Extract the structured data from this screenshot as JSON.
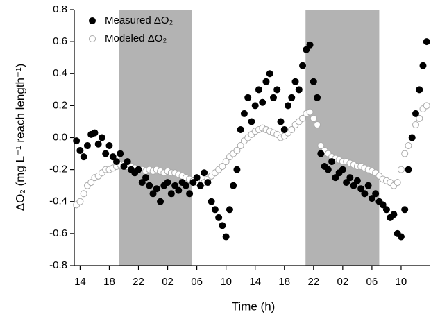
{
  "chart_data": {
    "type": "scatter",
    "xlabel": "Time (h)",
    "ylabel": "ΔO₂ (mg L⁻¹ reach length⁻¹)",
    "xlim": [
      13.2,
      62
    ],
    "ylim": [
      -0.8,
      0.8
    ],
    "xticks": [
      14,
      18,
      22,
      {
        "value": 26,
        "label": "02"
      },
      {
        "value": 30,
        "label": "06"
      },
      {
        "value": 34,
        "label": "10"
      },
      {
        "value": 38,
        "label": "14"
      },
      {
        "value": 42,
        "label": "18"
      },
      {
        "value": 46,
        "label": "22"
      },
      {
        "value": 50,
        "label": "02"
      },
      {
        "value": 54,
        "label": "06"
      },
      {
        "value": 58,
        "label": "10"
      }
    ],
    "yticks": [
      0.8,
      0.6,
      0.4,
      0.2,
      {
        "value": 0,
        "label": "0.0"
      },
      -0.2,
      -0.4,
      -0.6,
      -0.8
    ],
    "grid": false,
    "legend": "upper left",
    "shaded_regions": [
      [
        19.3,
        29.3
      ],
      [
        44.9,
        55
      ]
    ],
    "shade_color": "#b3b3b3",
    "x": [
      13.5,
      14,
      14.5,
      15,
      15.5,
      16,
      16.5,
      17,
      17.5,
      18,
      18.5,
      19,
      19.5,
      20,
      20.5,
      21,
      21.5,
      22,
      22.5,
      23,
      23.5,
      24,
      24.5,
      25,
      25.5,
      26,
      26.5,
      27,
      27.5,
      28,
      28.5,
      29,
      29.5,
      30,
      30.5,
      31,
      31.5,
      32,
      32.5,
      33,
      33.5,
      34,
      34.5,
      35,
      35.5,
      36,
      36.5,
      37,
      37.5,
      38,
      38.5,
      39,
      39.5,
      40,
      40.5,
      41,
      41.5,
      42,
      42.5,
      43,
      43.5,
      44,
      44.5,
      45,
      45.5,
      46,
      46.5,
      47,
      47.5,
      48,
      48.5,
      49,
      49.5,
      50,
      50.5,
      51,
      51.5,
      52,
      52.5,
      53,
      53.5,
      54,
      54.5,
      55,
      55.5,
      56,
      56.5,
      57,
      57.5,
      58,
      58.5,
      59,
      59.5,
      60,
      60.5,
      61,
      61.5
    ],
    "series": [
      {
        "name": "Measured ΔO₂",
        "color": "#000000",
        "edgecolor": "#000000",
        "values": [
          -0.02,
          -0.08,
          -0.12,
          -0.05,
          0.02,
          0.03,
          -0.04,
          0.0,
          -0.1,
          -0.05,
          -0.12,
          -0.15,
          -0.1,
          -0.18,
          -0.15,
          -0.2,
          -0.22,
          -0.2,
          -0.28,
          -0.25,
          -0.3,
          -0.35,
          -0.32,
          -0.4,
          -0.3,
          -0.28,
          -0.35,
          -0.3,
          -0.33,
          -0.28,
          -0.3,
          -0.35,
          -0.28,
          -0.25,
          -0.3,
          -0.22,
          -0.28,
          -0.4,
          -0.45,
          -0.5,
          -0.55,
          -0.62,
          -0.45,
          -0.3,
          -0.2,
          0.05,
          0.15,
          0.25,
          0.1,
          0.2,
          0.3,
          0.22,
          0.35,
          0.4,
          0.25,
          0.3,
          0.1,
          0.05,
          0.2,
          0.25,
          0.35,
          0.3,
          0.45,
          0.55,
          0.58,
          0.35,
          0.25,
          -0.1,
          -0.18,
          -0.2,
          -0.15,
          -0.25,
          -0.22,
          -0.2,
          -0.28,
          -0.25,
          -0.3,
          -0.27,
          -0.32,
          -0.35,
          -0.3,
          -0.38,
          -0.35,
          -0.4,
          -0.42,
          -0.45,
          -0.5,
          -0.48,
          -0.6,
          -0.62,
          -0.45,
          -0.2,
          0.0,
          0.15,
          0.3,
          0.45,
          0.6
        ]
      },
      {
        "name": "Modeled ΔO₂",
        "color": "#ffffff",
        "edgecolor": "#aaaaaa",
        "values": [
          -0.42,
          -0.4,
          -0.35,
          -0.3,
          -0.28,
          -0.25,
          -0.24,
          -0.22,
          -0.2,
          -0.2,
          -0.19,
          -0.18,
          -0.17,
          -0.17,
          -0.18,
          -0.18,
          -0.19,
          -0.2,
          -0.2,
          -0.21,
          -0.2,
          -0.21,
          -0.2,
          -0.21,
          -0.22,
          -0.21,
          -0.22,
          -0.22,
          -0.23,
          -0.24,
          -0.25,
          -0.26,
          -0.27,
          -0.28,
          -0.3,
          -0.28,
          -0.26,
          -0.24,
          -0.22,
          -0.2,
          -0.18,
          -0.15,
          -0.12,
          -0.1,
          -0.08,
          -0.05,
          -0.02,
          0.0,
          0.02,
          0.04,
          0.05,
          0.06,
          0.05,
          0.04,
          0.03,
          0.02,
          0.0,
          0.01,
          0.03,
          0.05,
          0.08,
          0.1,
          0.12,
          0.15,
          0.16,
          0.12,
          0.08,
          -0.05,
          -0.08,
          -0.1,
          -0.12,
          -0.13,
          -0.14,
          -0.15,
          -0.15,
          -0.16,
          -0.17,
          -0.18,
          -0.18,
          -0.19,
          -0.2,
          -0.21,
          -0.22,
          -0.24,
          -0.26,
          -0.27,
          -0.28,
          -0.3,
          -0.28,
          -0.2,
          -0.1,
          -0.05,
          0.0,
          0.08,
          0.12,
          0.18,
          0.2
        ]
      }
    ]
  }
}
